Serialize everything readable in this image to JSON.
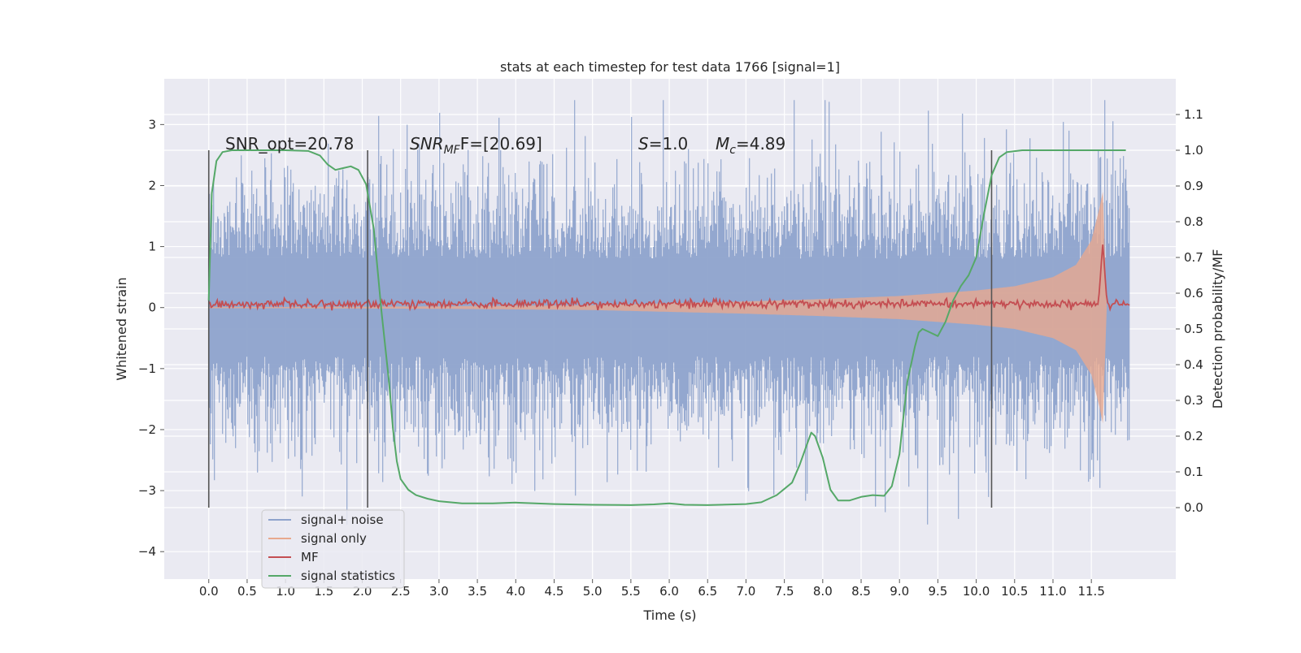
{
  "chart_data": {
    "type": "line",
    "title": "stats at each timestep for test data 1766 [signal=1]",
    "xlabel": "Time (s)",
    "ylabel": "Whitened strain",
    "y2label": "Detection probability/MF",
    "x_ticks": [
      0.0,
      0.5,
      1.0,
      1.5,
      2.0,
      2.5,
      3.0,
      3.5,
      4.0,
      4.5,
      5.0,
      5.5,
      6.0,
      6.5,
      7.0,
      7.5,
      8.0,
      8.5,
      9.0,
      9.5,
      10.0,
      10.5,
      11.0,
      11.5
    ],
    "x_tick_labels": [
      "0.0",
      "0.5",
      "1.0",
      "1.5",
      "2.0",
      "2.5",
      "3.0",
      "3.5",
      "4.0",
      "4.5",
      "5.0",
      "5.5",
      "6.0",
      "6.5",
      "7.0",
      "7.5",
      "8.0",
      "8.5",
      "9.0",
      "9.5",
      "10.0",
      "10.5",
      "11.0",
      "11.5"
    ],
    "xlim": [
      -0.58,
      12.6
    ],
    "ylim": [
      -4.45,
      3.75
    ],
    "y_ticks": [
      -4,
      -3,
      -2,
      -1,
      0,
      1,
      2,
      3
    ],
    "y_tick_labels": [
      "−4",
      "−3",
      "−2",
      "−1",
      "0",
      "1",
      "2",
      "3"
    ],
    "y2lim": [
      -0.2,
      1.2
    ],
    "y2_ticks": [
      0.0,
      0.1,
      0.2,
      0.3,
      0.4,
      0.5,
      0.6,
      0.7,
      0.8,
      0.9,
      1.0,
      1.1
    ],
    "y2_tick_labels": [
      "0.0",
      "0.1",
      "0.2",
      "0.3",
      "0.4",
      "0.5",
      "0.6",
      "0.7",
      "0.8",
      "0.9",
      "1.0",
      "1.1"
    ],
    "grid": true,
    "legend_placement": "lower-left",
    "series": [
      {
        "name": "signal+ noise",
        "color": "#8ea3cc",
        "axis": "left",
        "style": "noise band",
        "x_range": [
          0.0,
          12.0
        ],
        "approx_range": [
          -4.1,
          3.4
        ]
      },
      {
        "name": "signal only",
        "color": "#e8a98e",
        "axis": "left",
        "style": "chirp",
        "x": [
          0.0,
          1.0,
          2.0,
          3.0,
          4.0,
          5.0,
          6.0,
          7.0,
          8.0,
          9.0,
          10.0,
          10.5,
          11.0,
          11.3,
          11.5,
          11.6,
          11.65,
          11.7
        ],
        "envelope": [
          0.01,
          0.01,
          0.015,
          0.02,
          0.03,
          0.04,
          0.07,
          0.1,
          0.14,
          0.19,
          0.28,
          0.35,
          0.5,
          0.7,
          1.1,
          1.6,
          1.9,
          0.0
        ]
      },
      {
        "name": "MF",
        "color": "#c44e52",
        "axis": "left",
        "style": "noisy line",
        "x": [
          0.0,
          11.6,
          11.65,
          11.7,
          12.0
        ],
        "y": [
          0.06,
          0.06,
          1.0,
          0.06,
          0.06
        ]
      },
      {
        "name": "signal statistics",
        "color": "#55a868",
        "axis": "right",
        "x": [
          0.0,
          0.04,
          0.1,
          0.18,
          0.3,
          0.5,
          1.0,
          1.3,
          1.45,
          1.55,
          1.65,
          1.75,
          1.85,
          1.95,
          2.05,
          2.15,
          2.25,
          2.35,
          2.4,
          2.45,
          2.5,
          2.6,
          2.7,
          2.85,
          3.0,
          3.3,
          3.7,
          4.0,
          4.5,
          5.0,
          5.5,
          5.8,
          6.0,
          6.2,
          6.5,
          7.0,
          7.2,
          7.4,
          7.6,
          7.7,
          7.8,
          7.85,
          7.9,
          8.0,
          8.1,
          8.2,
          8.35,
          8.5,
          8.65,
          8.8,
          8.9,
          9.0,
          9.05,
          9.1,
          9.2,
          9.25,
          9.3,
          9.4,
          9.5,
          9.6,
          9.7,
          9.8,
          9.9,
          10.0,
          10.1,
          10.2,
          10.3,
          10.4,
          10.6,
          11.0,
          11.5,
          11.95
        ],
        "y": [
          0.58,
          0.88,
          0.97,
          0.995,
          1.0,
          1.0,
          1.0,
          0.998,
          0.985,
          0.96,
          0.945,
          0.95,
          0.955,
          0.945,
          0.905,
          0.78,
          0.55,
          0.35,
          0.22,
          0.13,
          0.08,
          0.05,
          0.035,
          0.025,
          0.018,
          0.012,
          0.012,
          0.014,
          0.01,
          0.008,
          0.007,
          0.009,
          0.012,
          0.008,
          0.007,
          0.01,
          0.015,
          0.035,
          0.07,
          0.12,
          0.18,
          0.21,
          0.2,
          0.14,
          0.05,
          0.02,
          0.02,
          0.03,
          0.035,
          0.033,
          0.06,
          0.15,
          0.25,
          0.35,
          0.45,
          0.49,
          0.5,
          0.49,
          0.48,
          0.52,
          0.58,
          0.62,
          0.65,
          0.7,
          0.82,
          0.93,
          0.98,
          0.995,
          1.0,
          1.0,
          1.0,
          1.0
        ]
      }
    ],
    "vertical_lines": [
      0.0,
      2.07,
      10.2
    ],
    "annotations": {
      "snr_opt": "SNR_opt=20.78",
      "snr_mf_base": "SNR",
      "snr_mf_sub": "MF",
      "snr_mf_rest": "F=[20.69]",
      "s_label": "S",
      "s_value": "=1.0",
      "mc_base": "M",
      "mc_sub": "c",
      "mc_value": "=4.89"
    }
  }
}
